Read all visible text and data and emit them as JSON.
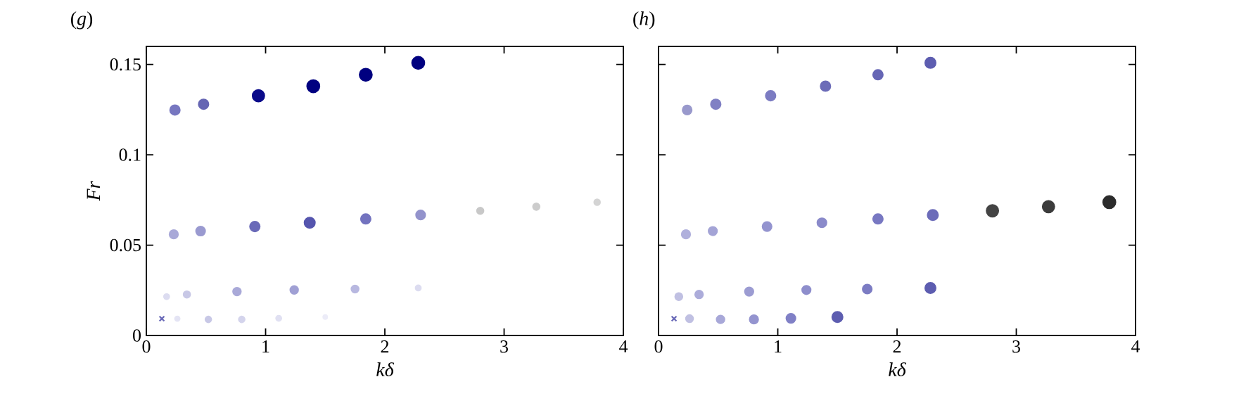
{
  "chart_data": [
    {
      "type": "bubble",
      "title": "(*g*)",
      "xlabel": "kδ",
      "ylabel": "Fr",
      "xlim": [
        0,
        4
      ],
      "xticks": [
        0,
        1,
        2,
        3,
        4
      ],
      "ylim": [
        0,
        0.16
      ],
      "yticks": [
        0,
        0.05,
        0.1,
        0.15
      ],
      "series": [
        {
          "x": [
            0.24,
            0.48,
            0.94,
            1.4,
            1.84,
            2.28
          ],
          "values": [
            0.1248,
            0.128,
            0.1327,
            0.138,
            0.1443,
            0.1509
          ],
          "sizes": [
            0.62,
            0.62,
            0.9,
            1,
            1,
            1
          ],
          "colors": [
            "#7777c0",
            "#6666b3",
            "#0a0a8a",
            "#000080",
            "#000080",
            "#000080"
          ]
        },
        {
          "x": [
            0.23,
            0.455,
            0.91,
            1.37,
            1.84,
            2.3,
            2.8,
            3.27,
            3.78
          ],
          "values": [
            0.056,
            0.0578,
            0.0603,
            0.0624,
            0.0645,
            0.0667,
            0.069,
            0.0713,
            0.0738
          ],
          "sizes": [
            0.47,
            0.54,
            0.62,
            0.71,
            0.62,
            0.54,
            0.28,
            0.28,
            0.22
          ],
          "colors": [
            "#a9a9d8",
            "#9a9ad0",
            "#6a6ab8",
            "#5555ae",
            "#7373bf",
            "#9393cc",
            "#c8c8c8",
            "#cccccc",
            "#d4d4d4"
          ]
        },
        {
          "x": [
            0.17,
            0.34,
            0.76,
            1.24,
            1.75,
            2.28
          ],
          "values": [
            0.0215,
            0.0227,
            0.0243,
            0.0252,
            0.0257,
            0.0263
          ],
          "sizes": [
            0.18,
            0.28,
            0.4,
            0.4,
            0.34,
            0.18
          ],
          "colors": [
            "#dcdcf0",
            "#c8c8e6",
            "#a9a9d8",
            "#a0a0d4",
            "#b8b8e0",
            "#dcdcf0"
          ]
        },
        {
          "x": [
            0.26,
            0.52,
            0.8,
            1.11,
            1.5
          ],
          "values": [
            0.0093,
            0.0089,
            0.0089,
            0.0095,
            0.0102
          ],
          "sizes": [
            0.14,
            0.22,
            0.22,
            0.18,
            0.1
          ],
          "colors": [
            "#e4e4f4",
            "#c8c8e6",
            "#d4d4ec",
            "#e0e0f2",
            "#ececf8"
          ]
        },
        {
          "type": "scatter",
          "marker": "cross",
          "color": "#6a6ab8",
          "x": [
            0.13
          ],
          "values": [
            0.0093
          ]
        }
      ]
    },
    {
      "type": "bubble",
      "title": "(*h*)",
      "xlabel": "kδ",
      "xlim": [
        0,
        4
      ],
      "xticks": [
        0,
        1,
        2,
        3,
        4
      ],
      "ylim": [
        0,
        0.16
      ],
      "yticks": [
        0,
        0.05,
        0.1,
        0.15
      ],
      "tick_labels": "x",
      "series": [
        {
          "x": [
            0.24,
            0.48,
            0.94,
            1.4,
            1.84,
            2.28
          ],
          "values": [
            0.1248,
            0.128,
            0.1327,
            0.138,
            0.1443,
            0.1509
          ],
          "sizes": [
            0.54,
            0.62,
            0.62,
            0.62,
            0.62,
            0.71
          ],
          "colors": [
            "#9999cc",
            "#8080c4",
            "#7c7cc2",
            "#6c6cb8",
            "#6666b5",
            "#5d5db0"
          ]
        },
        {
          "x": [
            0.23,
            0.455,
            0.91,
            1.37,
            1.84,
            2.3,
            2.8,
            3.27,
            3.78
          ],
          "values": [
            0.056,
            0.0578,
            0.0603,
            0.0624,
            0.0645,
            0.0667,
            0.069,
            0.0713,
            0.0738
          ],
          "sizes": [
            0.47,
            0.47,
            0.54,
            0.54,
            0.62,
            0.71,
            0.9,
            0.9,
            1
          ],
          "colors": [
            "#b0b0dc",
            "#a4a4d6",
            "#9494cf",
            "#8a8aca",
            "#7878c2",
            "#6c6cb9",
            "#444444",
            "#3c3c3c",
            "#2c2c2c"
          ]
        },
        {
          "x": [
            0.17,
            0.34,
            0.76,
            1.24,
            1.75,
            2.28
          ],
          "values": [
            0.0215,
            0.0227,
            0.0243,
            0.0252,
            0.0257,
            0.0263
          ],
          "sizes": [
            0.34,
            0.4,
            0.47,
            0.47,
            0.54,
            0.71
          ],
          "colors": [
            "#c0c0e2",
            "#acacda",
            "#9c9cd2",
            "#8e8ecc",
            "#7c7cc3",
            "#5d5db0"
          ]
        },
        {
          "x": [
            0.26,
            0.52,
            0.8,
            1.11,
            1.5
          ],
          "values": [
            0.0093,
            0.0089,
            0.0089,
            0.0095,
            0.0102
          ],
          "sizes": [
            0.34,
            0.4,
            0.47,
            0.54,
            0.71
          ],
          "colors": [
            "#c0c0e2",
            "#a8a8d8",
            "#9494cf",
            "#8080c6",
            "#5d5db0"
          ]
        },
        {
          "type": "scatter",
          "marker": "cross",
          "color": "#6a6ab8",
          "x": [
            0.13
          ],
          "values": [
            0.0093
          ]
        }
      ]
    }
  ]
}
